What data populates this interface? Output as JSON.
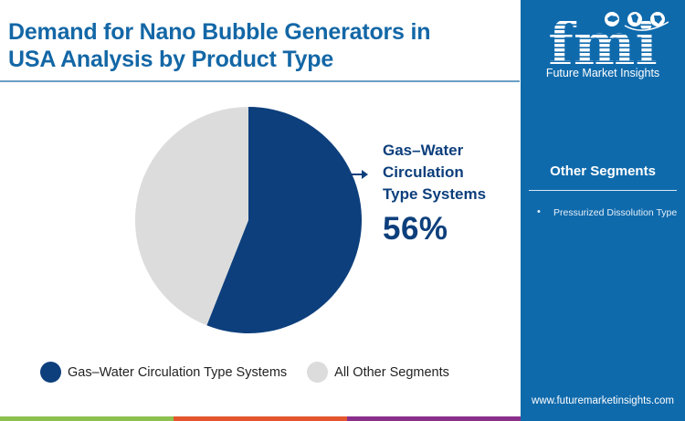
{
  "header": {
    "title_line1": "Demand for Nano Bubble Generators in",
    "title_line2": "USA Analysis by Product Type"
  },
  "colors": {
    "title": "#1367a6",
    "primary_slice": "#0d3f7c",
    "secondary_slice": "#dcdcdc",
    "panel": "#0f6aac",
    "bar_green": "#8cc04f",
    "bar_orange": "#e4572e",
    "bar_purple": "#8b2f8c"
  },
  "callout": {
    "line1": "Gas–Water",
    "line2": "Circulation",
    "line3": "Type Systems",
    "percent": "56%"
  },
  "legend": {
    "items": [
      {
        "label": "Gas–Water Circulation Type Systems",
        "color": "#0d3f7c"
      },
      {
        "label": "All Other Segments",
        "color": "#dcdcdc"
      }
    ]
  },
  "sidebar": {
    "logo_text": "fmi",
    "logo_subtitle": "Future Market Insights",
    "other_segments_title": "Other Segments",
    "other_segments": [
      {
        "bullet": "•",
        "label": "Pressurized Dissolution Type"
      }
    ],
    "website": "www.futuremarketinsights.com"
  },
  "chart_data": {
    "type": "pie",
    "title": "Demand for Nano Bubble Generators in USA Analysis by Product Type",
    "categories": [
      "Gas–Water Circulation Type Systems",
      "All Other Segments"
    ],
    "values": [
      56,
      44
    ],
    "unit": "%",
    "colors": [
      "#0d3f7c",
      "#dcdcdc"
    ],
    "start_angle": "12 o'clock, clockwise",
    "annotations": [
      {
        "target": "Gas–Water Circulation Type Systems",
        "text": "56%"
      }
    ],
    "legend_position": "bottom"
  }
}
